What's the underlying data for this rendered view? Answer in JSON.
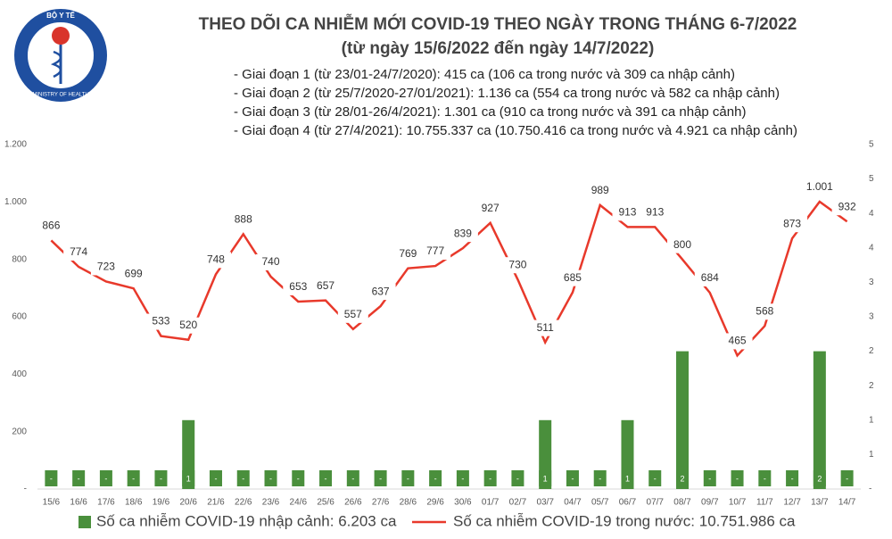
{
  "logo": {
    "top": "BỘ Y TẾ",
    "bottom": "MINISTRY OF HEALTH"
  },
  "chart_data": {
    "type": "bar-line",
    "title": "THEO DÕI CA NHIỄM MỚI COVID-19 THEO NGÀY TRONG THÁNG 6-7/2022",
    "subtitle": "(từ ngày 15/6/2022 đến ngày 14/7/2022)",
    "notes": [
      "- Giai đoạn 1 (từ 23/01-24/7/2020): 415 ca (106 ca trong nước và 309 ca nhập cảnh)",
      "- Giai đoạn 2 (từ 25/7/2020-27/01/2021): 1.136 ca (554 ca trong nước và 582 ca nhập cảnh)",
      "- Giai đoạn 3 (từ 28/01-26/4/2021): 1.301 ca (910 ca trong nước và 391 ca nhập cảnh)",
      "- Giai đoạn 4 (từ 27/4/2021): 10.755.337 ca (10.750.416 ca trong nước và 4.921 ca nhập cảnh)"
    ],
    "categories": [
      "15/6",
      "16/6",
      "17/6",
      "18/6",
      "19/6",
      "20/6",
      "21/6",
      "22/6",
      "23/6",
      "24/6",
      "25/6",
      "26/6",
      "27/6",
      "28/6",
      "29/6",
      "30/6",
      "01/7",
      "02/7",
      "03/7",
      "04/7",
      "05/7",
      "06/7",
      "07/7",
      "08/7",
      "09/7",
      "10/7",
      "11/7",
      "12/7",
      "13/7",
      "14/7"
    ],
    "series": [
      {
        "name": "Số ca nhiễm COVID-19 nhập cảnh: 6.203 ca",
        "type": "bar",
        "axis": "y2",
        "color": "#4a8f3c",
        "values": [
          0,
          0,
          0,
          0,
          0,
          1,
          0,
          0,
          0,
          0,
          0,
          0,
          0,
          0,
          0,
          0,
          0,
          0,
          1,
          0,
          0,
          1,
          0,
          2,
          0,
          0,
          0,
          0,
          2,
          0
        ],
        "value_labels": [
          "-",
          "-",
          "-",
          "-",
          "-",
          "1",
          "-",
          "-",
          "-",
          "-",
          "-",
          "-",
          "-",
          "-",
          "-",
          "-",
          "-",
          "-",
          "1",
          "-",
          "-",
          "1",
          "-",
          "2",
          "-",
          "-",
          "-",
          "-",
          "2",
          "-"
        ]
      },
      {
        "name": "Số ca nhiễm COVID-19 trong nước: 10.751.986 ca",
        "type": "line",
        "color": "#e8392b",
        "values": [
          866,
          774,
          723,
          699,
          533,
          520,
          748,
          888,
          740,
          653,
          657,
          557,
          637,
          769,
          777,
          839,
          927,
          730,
          511,
          685,
          989,
          913,
          913,
          800,
          684,
          465,
          568,
          873,
          1001,
          932
        ],
        "value_labels": [
          "866",
          "774",
          "723",
          "699",
          "533",
          "520",
          "748",
          "888",
          "740",
          "653",
          "657",
          "557",
          "637",
          "769",
          "777",
          "839",
          "927",
          "730",
          "511",
          "685",
          "989",
          "913",
          "913",
          "800",
          "684",
          "465",
          "568",
          "873",
          "1.001",
          "932"
        ]
      }
    ],
    "ylim": [
      0,
      1200
    ],
    "yticks": [
      {
        "value": 0,
        "label": "-"
      },
      200,
      400,
      600,
      800,
      {
        "value": 1000,
        "label": "1.000"
      },
      {
        "value": 1200,
        "label": "1.200"
      }
    ],
    "y2lim": [
      0,
      5
    ],
    "y2ticks": [
      {
        "value": 0,
        "label": "-"
      },
      {
        "value": 0.5,
        "label": "1"
      },
      1,
      {
        "value": 1.5,
        "label": "2"
      },
      2,
      {
        "value": 2.5,
        "label": "3"
      },
      3,
      {
        "value": 3.5,
        "label": "4"
      },
      4,
      {
        "value": 4.5,
        "label": "5"
      },
      5
    ],
    "grid": false,
    "legend": "bottom"
  }
}
